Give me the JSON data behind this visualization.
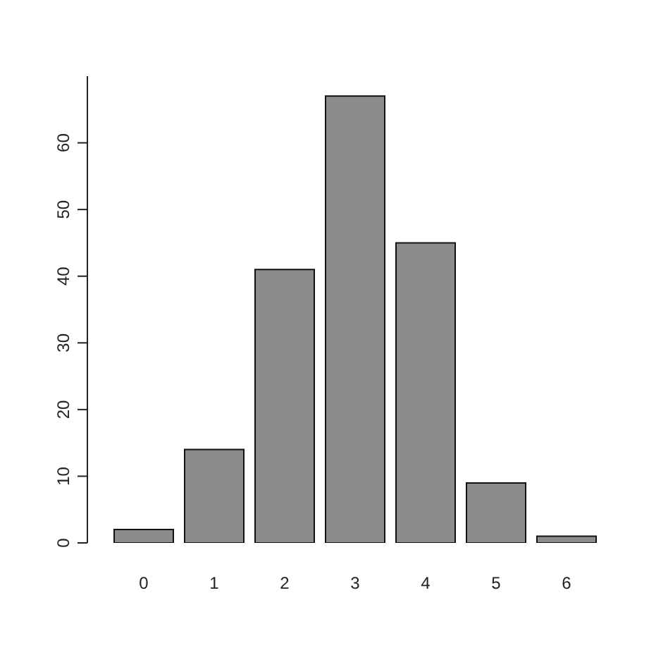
{
  "chart_data": {
    "type": "bar",
    "categories": [
      "0",
      "1",
      "2",
      "3",
      "4",
      "5",
      "6"
    ],
    "values": [
      2,
      14,
      41,
      67,
      45,
      9,
      1
    ],
    "color": "#8c8c8c",
    "ylim": [
      0,
      70
    ],
    "yticks": [
      0,
      10,
      20,
      30,
      40,
      50,
      60
    ],
    "grid": false,
    "legend": false
  }
}
